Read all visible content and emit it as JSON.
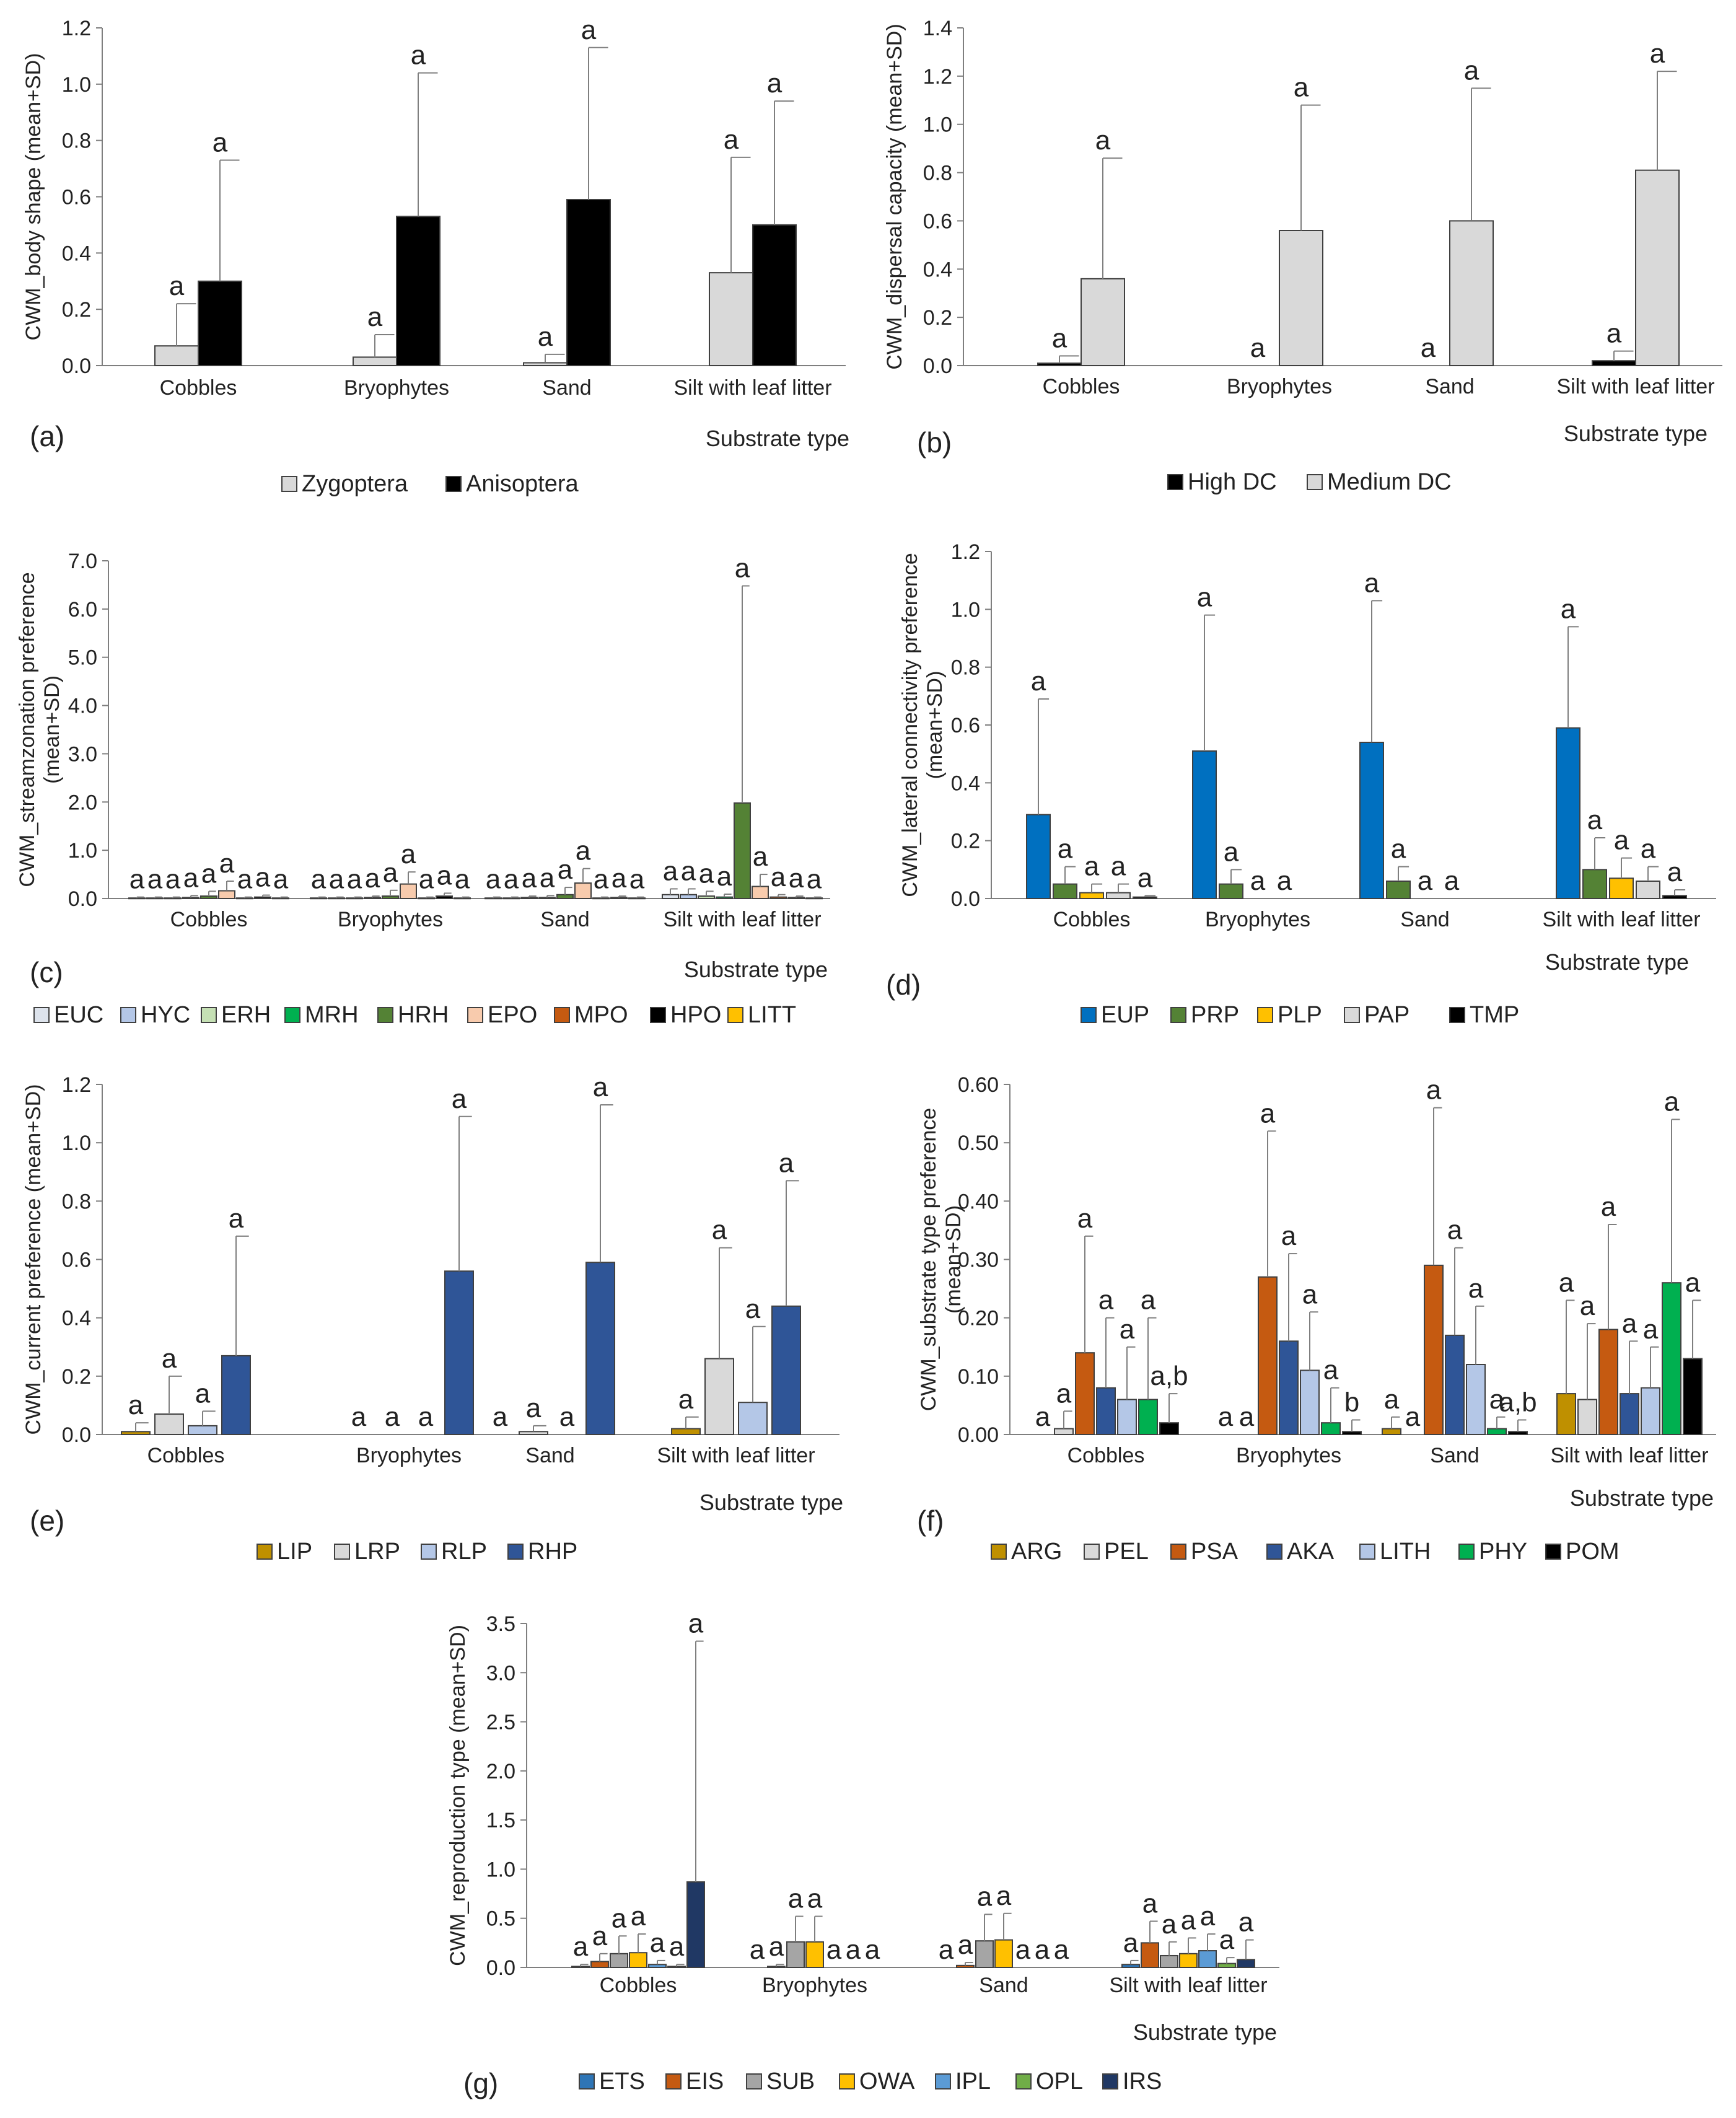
{
  "figure": {
    "xlabel_common": "Substrate type"
  },
  "chart_data": [
    {
      "id": "a",
      "type": "bar",
      "panel_label": "(a)",
      "ylabel": "CWM_body shape (mean+SD)",
      "xlabel": "Substrate type",
      "ylim": [
        0,
        1.2
      ],
      "ystep": 0.2,
      "ydecimals": 1,
      "categories": [
        "Cobbles",
        "Bryophytes",
        "Sand",
        "Silt with leaf litter"
      ],
      "series": [
        {
          "name": "Zygoptera",
          "color": "#d9d9d9",
          "values": [
            0.07,
            0.03,
            0.01,
            0.33
          ],
          "sd": [
            0.15,
            0.08,
            0.03,
            0.41
          ],
          "labels": [
            "a",
            "a",
            "a",
            "a"
          ]
        },
        {
          "name": "Anisoptera",
          "color": "#000000",
          "values": [
            0.3,
            0.53,
            0.59,
            0.5
          ],
          "sd": [
            0.43,
            0.51,
            0.54,
            0.44
          ],
          "labels": [
            "a",
            "a",
            "a",
            "a"
          ]
        }
      ]
    },
    {
      "id": "b",
      "type": "bar",
      "panel_label": "(b)",
      "ylabel": "CWM_dispersal capacity (mean+SD)",
      "xlabel": "Substrate type",
      "ylim": [
        0,
        1.4
      ],
      "ystep": 0.2,
      "ydecimals": 1,
      "categories": [
        "Cobbles",
        "Bryophytes",
        "Sand",
        "Silt with leaf litter"
      ],
      "series": [
        {
          "name": "High DC",
          "color": "#000000",
          "values": [
            0.01,
            0,
            0,
            0.02
          ],
          "sd": [
            0.03,
            0,
            0,
            0.04
          ],
          "labels": [
            "a",
            "a",
            "a",
            "a"
          ]
        },
        {
          "name": "Medium DC",
          "color": "#d9d9d9",
          "values": [
            0.36,
            0.56,
            0.6,
            0.81
          ],
          "sd": [
            0.5,
            0.52,
            0.55,
            0.41
          ],
          "labels": [
            "a",
            "a",
            "a",
            "a"
          ]
        }
      ]
    },
    {
      "id": "c",
      "type": "bar",
      "panel_label": "(c)",
      "ylabel": "CWM_streamzonation preference\n(mean+SD)",
      "xlabel": "Substrate type",
      "ylim": [
        0,
        7.0
      ],
      "ystep": 1.0,
      "ydecimals": 1,
      "categories": [
        "Cobbles",
        "Bryophytes",
        "Sand",
        "Silt with leaf litter"
      ],
      "series": [
        {
          "name": "EUC",
          "color": "#dde3ec",
          "values": [
            0.01,
            0.01,
            0.01,
            0.08
          ],
          "sd": [
            0.02,
            0.02,
            0.02,
            0.12
          ],
          "labels": [
            "a",
            "a",
            "a",
            "a"
          ]
        },
        {
          "name": "HYC",
          "color": "#b4c7e7",
          "values": [
            0.01,
            0.01,
            0.01,
            0.08
          ],
          "sd": [
            0.02,
            0.02,
            0.02,
            0.12
          ],
          "labels": [
            "a",
            "a",
            "a",
            "a"
          ]
        },
        {
          "name": "ERH",
          "color": "#c5e0b4",
          "values": [
            0.01,
            0.01,
            0.02,
            0.05
          ],
          "sd": [
            0.02,
            0.02,
            0.03,
            0.1
          ],
          "labels": [
            "a",
            "a",
            "a",
            "a"
          ]
        },
        {
          "name": "MRH",
          "color": "#00b050",
          "values": [
            0.02,
            0.02,
            0.02,
            0.03
          ],
          "sd": [
            0.04,
            0.03,
            0.04,
            0.06
          ],
          "labels": [
            "a",
            "a",
            "a",
            "a"
          ]
        },
        {
          "name": "HRH",
          "color": "#548235",
          "values": [
            0.05,
            0.05,
            0.08,
            1.98
          ],
          "sd": [
            0.1,
            0.12,
            0.15,
            4.5
          ],
          "labels": [
            "a",
            "a",
            "a",
            "a"
          ]
        },
        {
          "name": "EPO",
          "color": "#f8cbad",
          "values": [
            0.16,
            0.3,
            0.32,
            0.25
          ],
          "sd": [
            0.2,
            0.25,
            0.3,
            0.25
          ],
          "labels": [
            "a",
            "a",
            "a",
            "a"
          ]
        },
        {
          "name": "MPO",
          "color": "#c55a11",
          "values": [
            0.01,
            0.01,
            0.01,
            0.03
          ],
          "sd": [
            0.02,
            0.02,
            0.02,
            0.05
          ],
          "labels": [
            "a",
            "a",
            "a",
            "a"
          ]
        },
        {
          "name": "HPO",
          "color": "#000000",
          "values": [
            0.03,
            0.05,
            0.02,
            0.02
          ],
          "sd": [
            0.04,
            0.06,
            0.03,
            0.03
          ],
          "labels": [
            "a",
            "a",
            "a",
            "a"
          ]
        },
        {
          "name": "LITT",
          "color": "#ffc000",
          "values": [
            0.01,
            0.01,
            0.01,
            0.01
          ],
          "sd": [
            0.02,
            0.02,
            0.02,
            0.02
          ],
          "labels": [
            "a",
            "a",
            "a",
            "a"
          ]
        }
      ]
    },
    {
      "id": "d",
      "type": "bar",
      "panel_label": "(d)",
      "ylabel": "CWM_lateral connectivity preference\n(mean+SD)",
      "xlabel": "Substrate type",
      "ylim": [
        0,
        1.2
      ],
      "ystep": 0.2,
      "ydecimals": 1,
      "categories": [
        "Cobbles",
        "Bryophytes",
        "Sand",
        "Silt with leaf litter"
      ],
      "series": [
        {
          "name": "EUP",
          "color": "#0070c0",
          "values": [
            0.29,
            0.51,
            0.54,
            0.59
          ],
          "sd": [
            0.4,
            0.47,
            0.49,
            0.35
          ],
          "labels": [
            "a",
            "a",
            "a",
            "a"
          ]
        },
        {
          "name": "PRP",
          "color": "#548235",
          "values": [
            0.05,
            0.05,
            0.06,
            0.1
          ],
          "sd": [
            0.06,
            0.05,
            0.05,
            0.11
          ],
          "labels": [
            "a",
            "a",
            "a",
            "a"
          ]
        },
        {
          "name": "PLP",
          "color": "#ffc000",
          "values": [
            0.02,
            0,
            0,
            0.07
          ],
          "sd": [
            0.03,
            0,
            0,
            0.07
          ],
          "labels": [
            "a",
            "a",
            "a",
            "a"
          ]
        },
        {
          "name": "PAP",
          "color": "#d9d9d9",
          "values": [
            0.02,
            0,
            0,
            0.06
          ],
          "sd": [
            0.03,
            0,
            0,
            0.05
          ],
          "labels": [
            "a",
            "a",
            "a",
            "a"
          ]
        },
        {
          "name": "TMP",
          "color": "#000000",
          "values": [
            0.005,
            0,
            0,
            0.01
          ],
          "sd": [
            0.005,
            0,
            0,
            0.02
          ],
          "labels": [
            "a",
            "",
            "",
            "a"
          ]
        }
      ]
    },
    {
      "id": "e",
      "type": "bar",
      "panel_label": "(e)",
      "ylabel": "CWM_current preference (mean+SD)",
      "xlabel": "Substrate type",
      "ylim": [
        0,
        1.2
      ],
      "ystep": 0.2,
      "ydecimals": 1,
      "categories": [
        "Cobbles",
        "Bryophytes",
        "Sand",
        "Silt with leaf litter"
      ],
      "series": [
        {
          "name": "LIP",
          "color": "#bf9000",
          "values": [
            0.01,
            0,
            0,
            0.02
          ],
          "sd": [
            0.03,
            0,
            0,
            0.04
          ],
          "labels": [
            "a",
            "a",
            "a",
            "a"
          ]
        },
        {
          "name": "LRP",
          "color": "#d9d9d9",
          "values": [
            0.07,
            0,
            0.01,
            0.26
          ],
          "sd": [
            0.13,
            0,
            0.02,
            0.38
          ],
          "labels": [
            "a",
            "a",
            "a",
            "a"
          ]
        },
        {
          "name": "RLP",
          "color": "#b4c7e7",
          "values": [
            0.03,
            0,
            0,
            0.11
          ],
          "sd": [
            0.05,
            0,
            0,
            0.26
          ],
          "labels": [
            "a",
            "a",
            "a",
            "a"
          ]
        },
        {
          "name": "RHP",
          "color": "#2f5597",
          "values": [
            0.27,
            0.56,
            0.59,
            0.44
          ],
          "sd": [
            0.41,
            0.53,
            0.54,
            0.43
          ],
          "labels": [
            "a",
            "a",
            "a",
            "a"
          ]
        }
      ]
    },
    {
      "id": "f",
      "type": "bar",
      "panel_label": "(f)",
      "ylabel": "CWM_substrate type preference\n(mean+SD)",
      "xlabel": "Substrate type",
      "ylim": [
        0,
        0.6
      ],
      "ystep": 0.1,
      "ydecimals": 2,
      "categories": [
        "Cobbles",
        "Bryophytes",
        "Sand",
        "Silt with leaf litter"
      ],
      "series": [
        {
          "name": "ARG",
          "color": "#bf9000",
          "values": [
            0,
            0,
            0.01,
            0.07
          ],
          "sd": [
            0,
            0,
            0.02,
            0.16
          ],
          "labels": [
            "a",
            "a",
            "a",
            "a"
          ]
        },
        {
          "name": "PEL",
          "color": "#d9d9d9",
          "values": [
            0.01,
            0,
            0,
            0.06
          ],
          "sd": [
            0.03,
            0,
            0,
            0.13
          ],
          "labels": [
            "a",
            "a",
            "a",
            "a"
          ]
        },
        {
          "name": "PSA",
          "color": "#c55a11",
          "values": [
            0.14,
            0.27,
            0.29,
            0.18
          ],
          "sd": [
            0.2,
            0.25,
            0.27,
            0.18
          ],
          "labels": [
            "a",
            "a",
            "a",
            "a"
          ]
        },
        {
          "name": "AKA",
          "color": "#2f5597",
          "values": [
            0.08,
            0.16,
            0.17,
            0.07
          ],
          "sd": [
            0.12,
            0.15,
            0.15,
            0.09
          ],
          "labels": [
            "a",
            "a",
            "a",
            "a"
          ]
        },
        {
          "name": "LITH",
          "color": "#b4c7e7",
          "values": [
            0.06,
            0.11,
            0.12,
            0.08
          ],
          "sd": [
            0.09,
            0.1,
            0.1,
            0.07
          ],
          "labels": [
            "a",
            "a",
            "a",
            "a"
          ]
        },
        {
          "name": "PHY",
          "color": "#00b050",
          "values": [
            0.06,
            0.02,
            0.01,
            0.26
          ],
          "sd": [
            0.14,
            0.06,
            0.02,
            0.28
          ],
          "labels": [
            "a",
            "a",
            "a",
            "a"
          ]
        },
        {
          "name": "POM",
          "color": "#000000",
          "values": [
            0.02,
            0.005,
            0.005,
            0.13
          ],
          "sd": [
            0.05,
            0.02,
            0.02,
            0.1
          ],
          "labels": [
            "a,b",
            "b",
            "a,b",
            "a"
          ]
        }
      ]
    },
    {
      "id": "g",
      "type": "bar",
      "panel_label": "(g)",
      "ylabel": "CWM_reproduction type (mean+SD)",
      "xlabel": "Substrate type",
      "ylim": [
        0,
        3.5
      ],
      "ystep": 0.5,
      "ydecimals": 1,
      "categories": [
        "Cobbles",
        "Bryophytes",
        "Sand",
        "Silt with leaf litter"
      ],
      "series": [
        {
          "name": "ETS",
          "color": "#2e75b6",
          "values": [
            0.01,
            0,
            0,
            0.03
          ],
          "sd": [
            0.02,
            0,
            0,
            0.04
          ],
          "labels": [
            "a",
            "a",
            "a",
            "a"
          ]
        },
        {
          "name": "EIS",
          "color": "#c55a11",
          "values": [
            0.06,
            0.01,
            0.02,
            0.25
          ],
          "sd": [
            0.08,
            0.02,
            0.03,
            0.22
          ],
          "labels": [
            "a",
            "a",
            "a",
            "a"
          ]
        },
        {
          "name": "SUB",
          "color": "#a5a5a5",
          "values": [
            0.14,
            0.26,
            0.27,
            0.12
          ],
          "sd": [
            0.18,
            0.26,
            0.27,
            0.14
          ],
          "labels": [
            "a",
            "a",
            "a",
            "a"
          ]
        },
        {
          "name": "OWA",
          "color": "#ffc000",
          "values": [
            0.15,
            0.26,
            0.28,
            0.14
          ],
          "sd": [
            0.19,
            0.26,
            0.27,
            0.16
          ],
          "labels": [
            "a",
            "a",
            "a",
            "a"
          ]
        },
        {
          "name": "IPL",
          "color": "#5b9bd5",
          "values": [
            0.03,
            0,
            0,
            0.17
          ],
          "sd": [
            0.04,
            0,
            0,
            0.17
          ],
          "labels": [
            "a",
            "a",
            "a",
            "a"
          ]
        },
        {
          "name": "OPL",
          "color": "#70ad47",
          "values": [
            0.01,
            0,
            0,
            0.04
          ],
          "sd": [
            0.02,
            0,
            0,
            0.06
          ],
          "labels": [
            "a",
            "a",
            "a",
            "a"
          ]
        },
        {
          "name": "IRS",
          "color": "#203864",
          "values": [
            0.87,
            0,
            0,
            0.08
          ],
          "sd": [
            2.45,
            0,
            0,
            0.2
          ],
          "labels": [
            "a",
            "a",
            "a",
            "a"
          ]
        }
      ]
    }
  ]
}
